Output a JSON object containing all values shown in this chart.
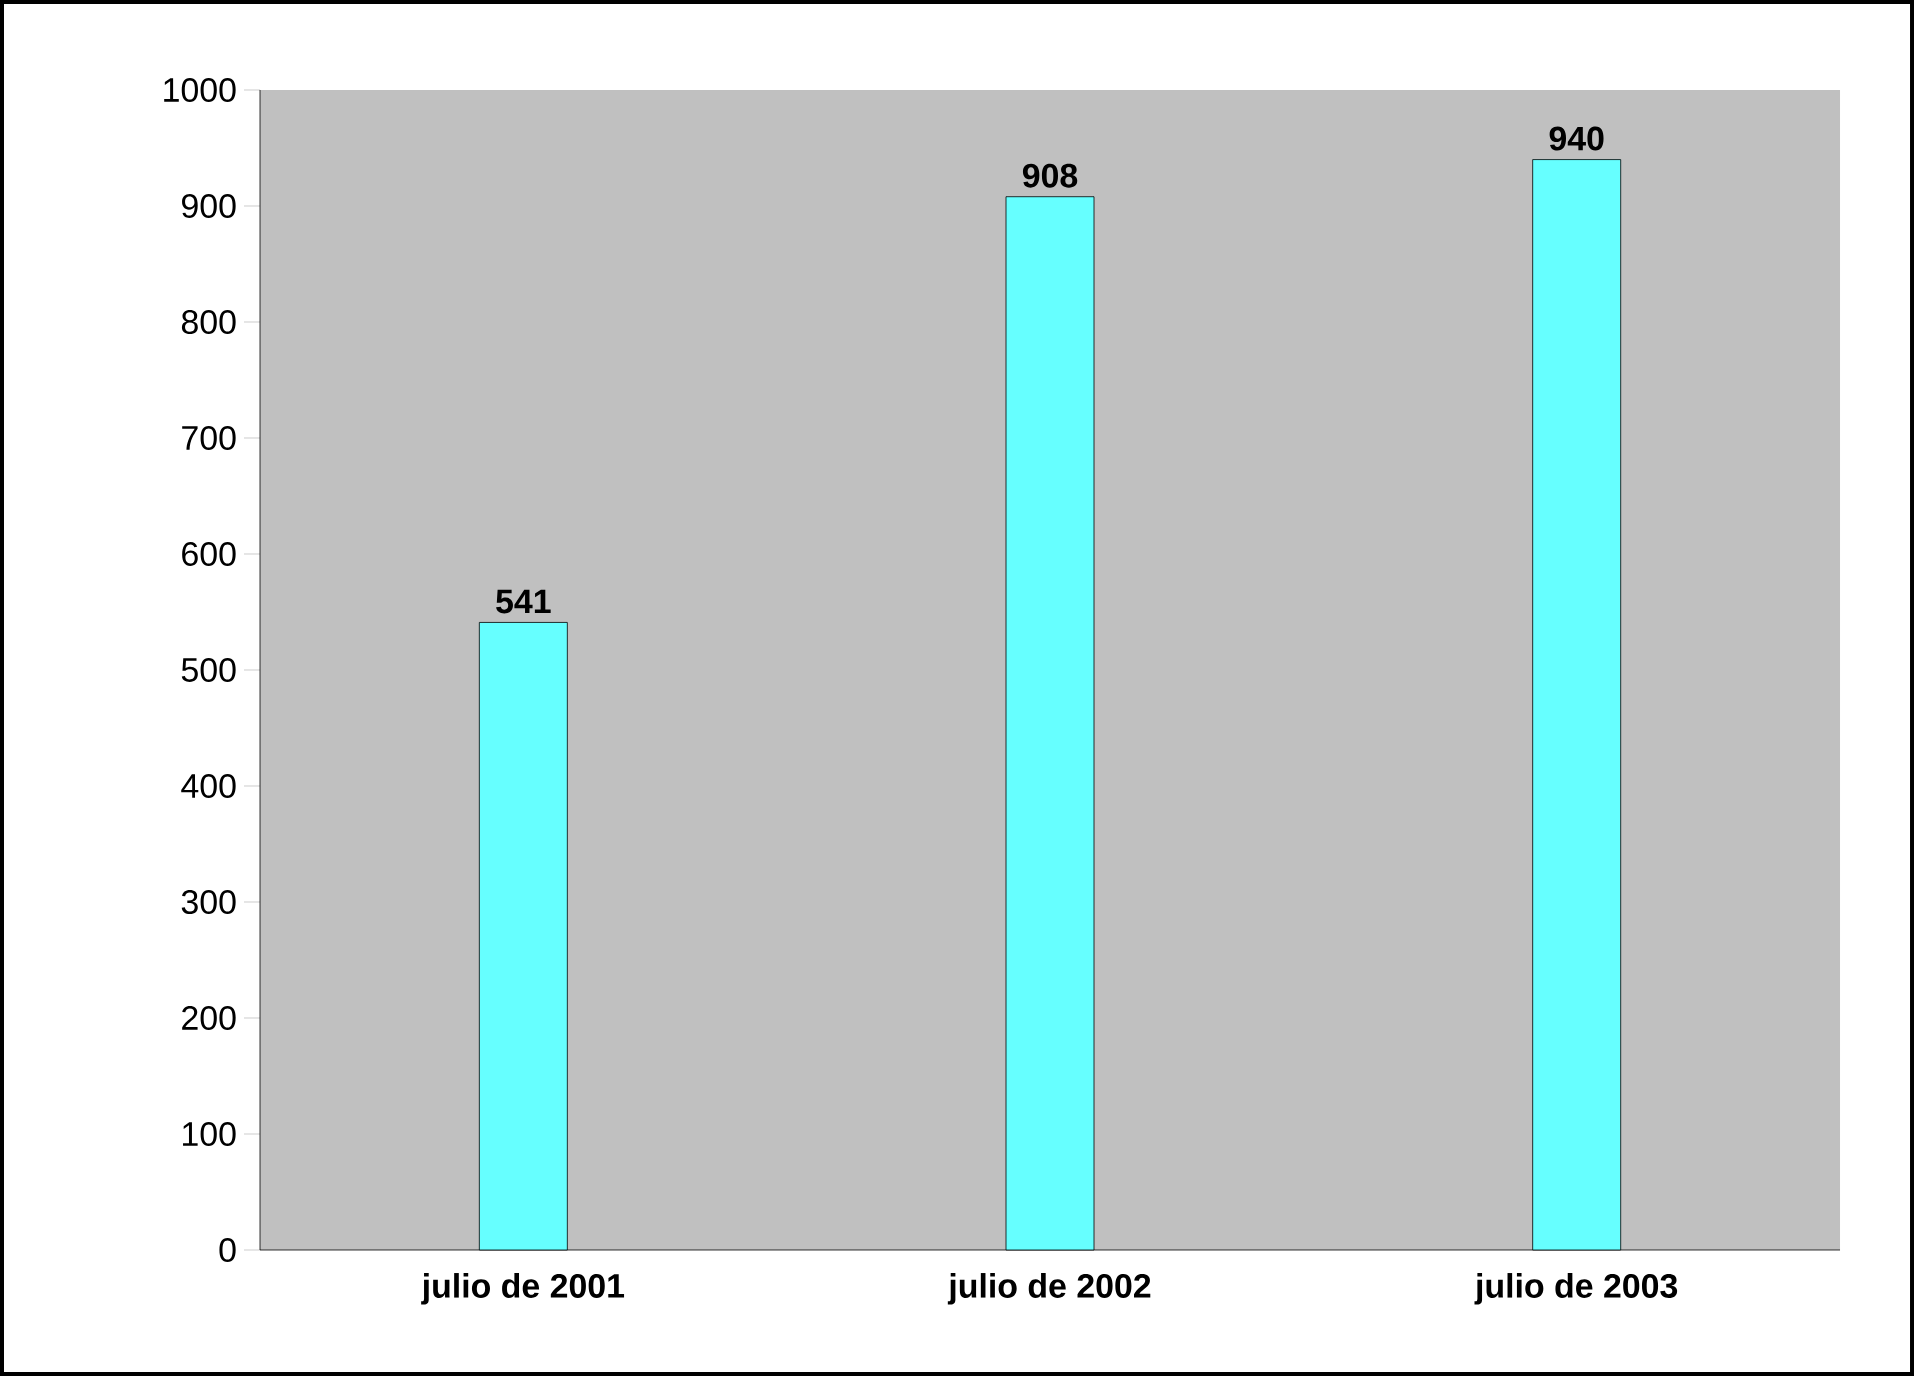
{
  "chart_data": {
    "type": "bar",
    "categories": [
      "julio de 2001",
      "julio de 2002",
      "julio de 2003"
    ],
    "values": [
      541,
      908,
      940
    ],
    "color": "#66ffff",
    "ylim": [
      0,
      1000
    ],
    "yticks": [
      0,
      100,
      200,
      300,
      400,
      500,
      600,
      700,
      800,
      900,
      1000
    ],
    "data_labels": true,
    "grid": false
  }
}
